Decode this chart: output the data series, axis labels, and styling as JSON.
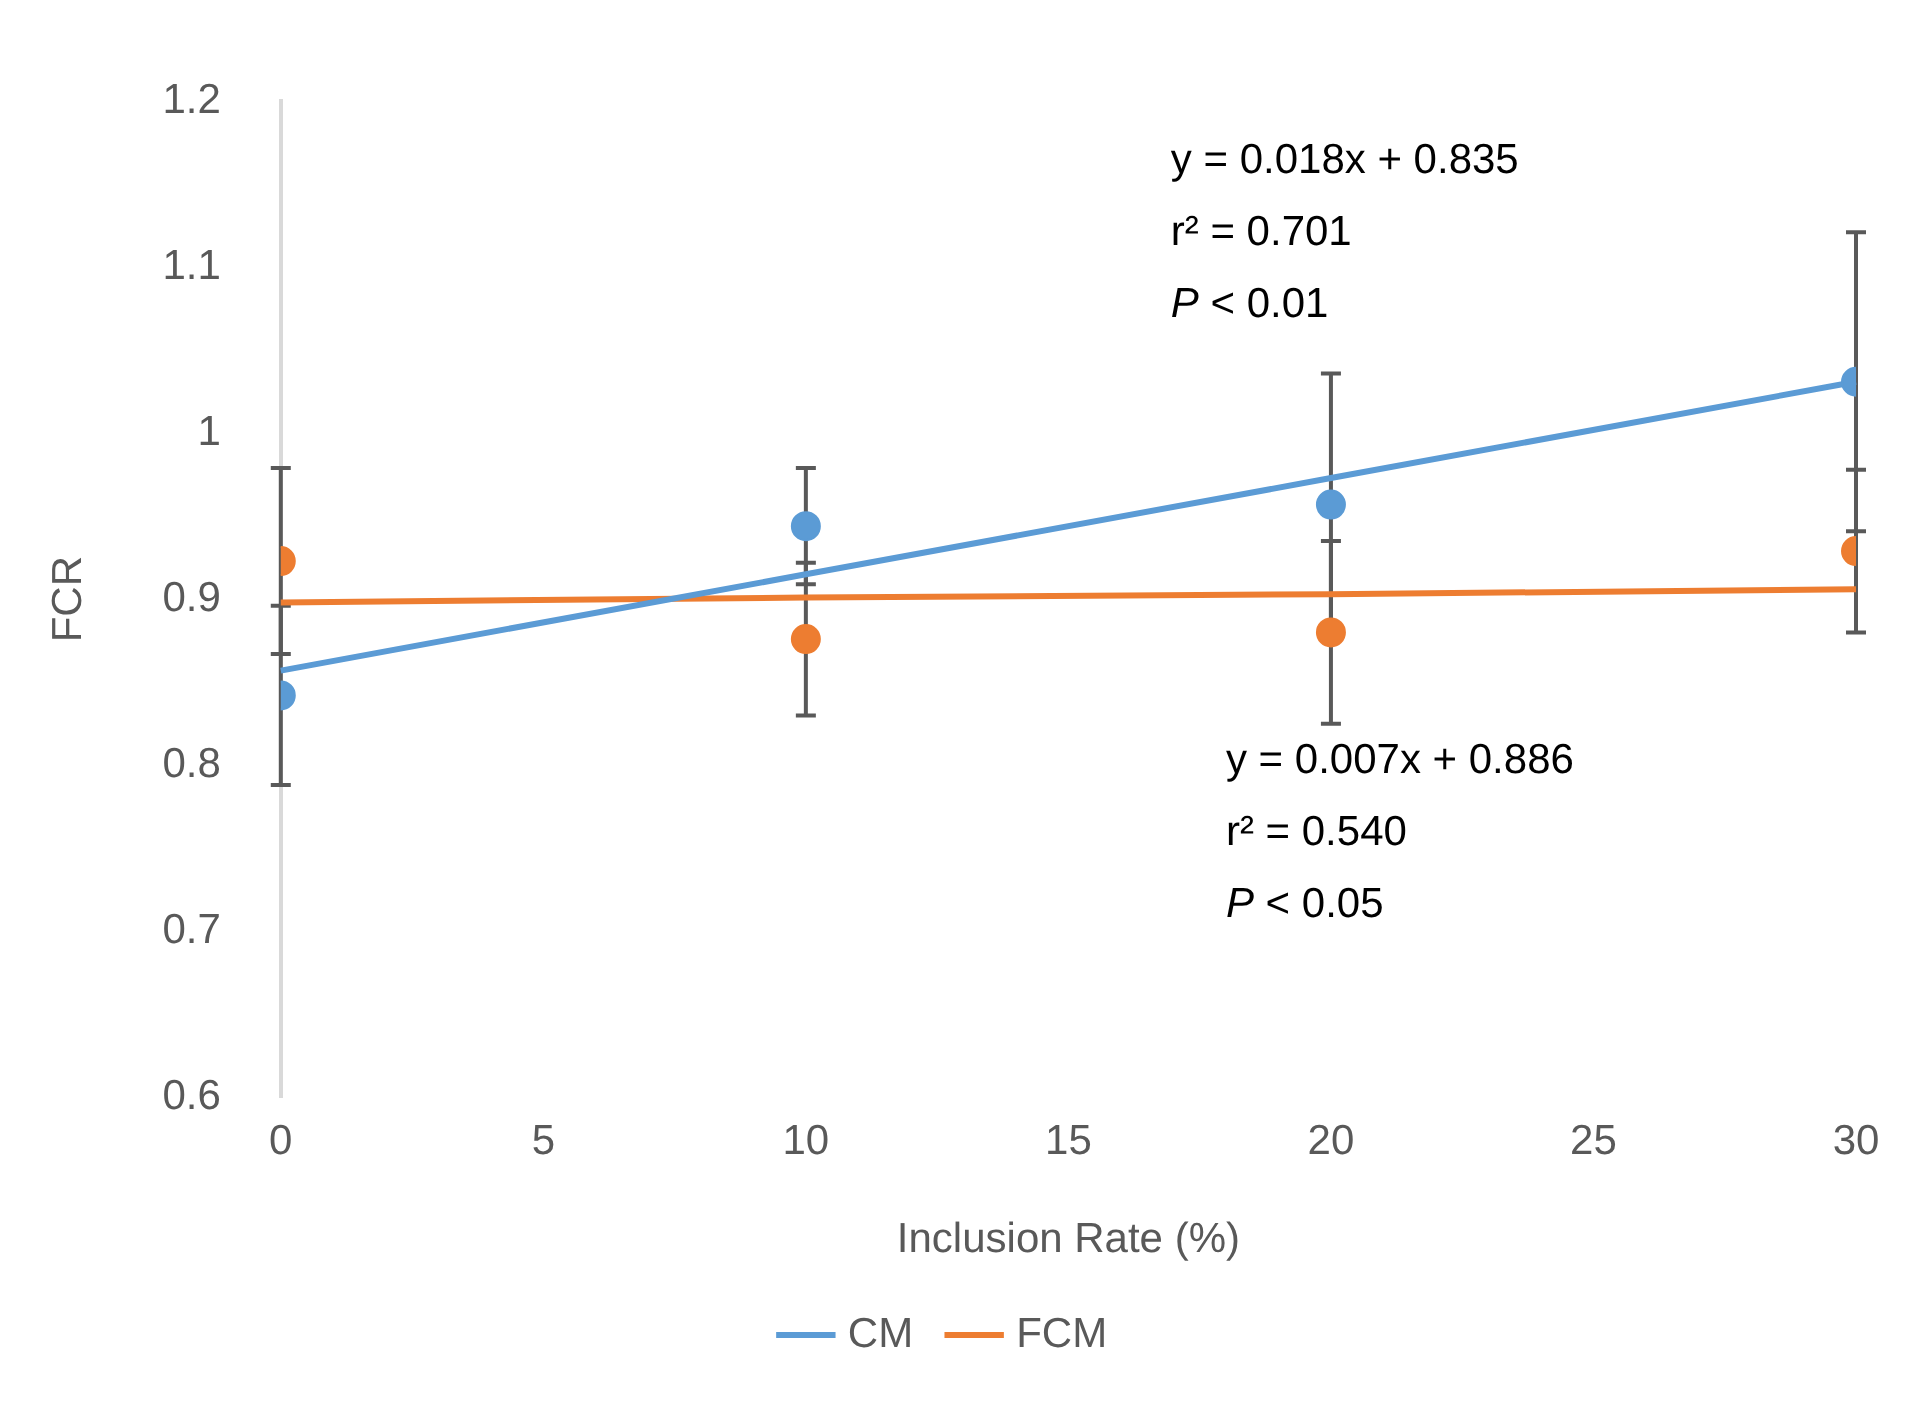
{
  "chart_data": {
    "type": "scatter",
    "xlabel": "Inclusion Rate (%)",
    "ylabel": "FCR",
    "x": [
      0,
      10,
      20,
      30
    ],
    "xlim": [
      0,
      30
    ],
    "xticks": [
      0,
      5,
      10,
      15,
      20,
      25,
      30
    ],
    "ylim": [
      0.6,
      1.2
    ],
    "yticks": [
      0.6,
      0.7,
      0.8,
      0.9,
      1,
      1.1,
      1.2
    ],
    "grid": false,
    "legend": "bottom",
    "marker": "circle",
    "series": [
      {
        "color": "#5b9bd5",
        "values": [
          0.842,
          0.944,
          0.957,
          1.031
        ],
        "errors": [
          0.054,
          0.035,
          0.079,
          0.09
        ]
      },
      {
        "color": "#ed7d31",
        "values": [
          0.923,
          0.876,
          0.88,
          0.929
        ],
        "errors": [
          0.056,
          0.046,
          0.055,
          0.049
        ]
      },
      {
        "type": "line",
        "name": "CM",
        "color": "#5b9bd5",
        "values": [
          0.857,
          0.915,
          0.973,
          1.031
        ],
        "marker": "none"
      },
      {
        "type": "line",
        "name": "FCM",
        "color": "#ed7d31",
        "values": [
          0.898,
          0.901,
          0.903,
          0.906
        ],
        "marker": "none"
      }
    ],
    "annotations": [
      "y = 0.018x + 0.835",
      "r² = 0.701",
      "P < 0.01",
      "y = 0.007x + 0.886",
      "r² = 0.540",
      "P < 0.05"
    ]
  }
}
